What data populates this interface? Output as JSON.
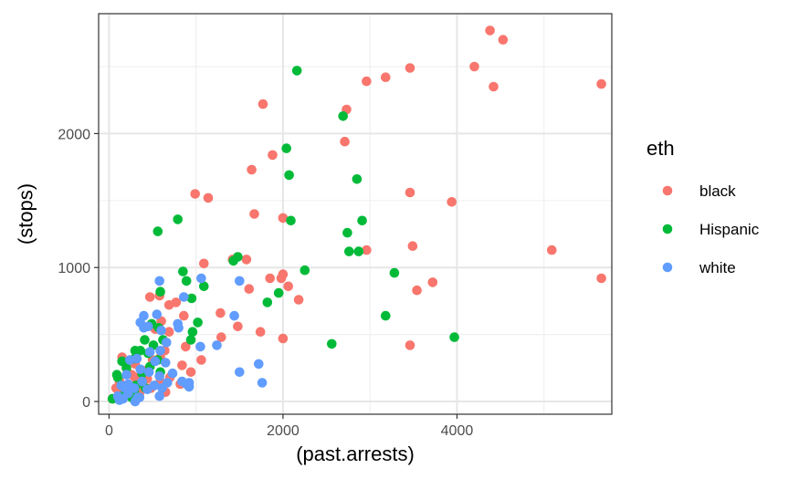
{
  "chart_data": {
    "type": "scatter",
    "title": "",
    "xlabel": "(past.arrests)",
    "ylabel": "(stops)",
    "xlim": [
      -120,
      5780
    ],
    "ylim": [
      -95,
      2895
    ],
    "x_ticks": [
      0,
      2000,
      4000
    ],
    "y_ticks": [
      0,
      1000,
      2000
    ],
    "x_tick_labels": [
      "0",
      "2000",
      "4000"
    ],
    "y_tick_labels": [
      "0",
      "1000",
      "2000"
    ],
    "grid": true,
    "legend": {
      "title": "eth",
      "placement": "right"
    },
    "series": [
      {
        "name": "black",
        "color": "#F8766D",
        "points": [
          [
            4380,
            2770
          ],
          [
            4530,
            2700
          ],
          [
            3460,
            2490
          ],
          [
            4200,
            2500
          ],
          [
            3180,
            2420
          ],
          [
            2960,
            2390
          ],
          [
            4420,
            2350
          ],
          [
            5660,
            2370
          ],
          [
            1770,
            2220
          ],
          [
            2730,
            2180
          ],
          [
            2710,
            1940
          ],
          [
            1880,
            1840
          ],
          [
            1640,
            1730
          ],
          [
            3460,
            1560
          ],
          [
            990,
            1550
          ],
          [
            1140,
            1520
          ],
          [
            3940,
            1490
          ],
          [
            1670,
            1400
          ],
          [
            2000,
            1370
          ],
          [
            3490,
            1160
          ],
          [
            2960,
            1130
          ],
          [
            5090,
            1130
          ],
          [
            1420,
            1060
          ],
          [
            1580,
            1060
          ],
          [
            1090,
            1030
          ],
          [
            2000,
            950
          ],
          [
            1980,
            920
          ],
          [
            1850,
            920
          ],
          [
            3720,
            890
          ],
          [
            5660,
            920
          ],
          [
            2060,
            860
          ],
          [
            1610,
            840
          ],
          [
            3540,
            830
          ],
          [
            2180,
            760
          ],
          [
            580,
            790
          ],
          [
            470,
            780
          ],
          [
            770,
            740
          ],
          [
            690,
            720
          ],
          [
            1280,
            660
          ],
          [
            860,
            640
          ],
          [
            600,
            600
          ],
          [
            1480,
            560
          ],
          [
            1740,
            520
          ],
          [
            2000,
            470
          ],
          [
            530,
            540
          ],
          [
            690,
            520
          ],
          [
            1290,
            480
          ],
          [
            3460,
            420
          ],
          [
            880,
            410
          ],
          [
            640,
            380
          ],
          [
            590,
            330
          ],
          [
            1060,
            310
          ],
          [
            840,
            270
          ],
          [
            150,
            330
          ],
          [
            500,
            310
          ],
          [
            300,
            280
          ],
          [
            200,
            250
          ],
          [
            940,
            220
          ],
          [
            420,
            230
          ],
          [
            300,
            180
          ],
          [
            120,
            150
          ],
          [
            80,
            100
          ],
          [
            210,
            120
          ],
          [
            350,
            130
          ],
          [
            440,
            170
          ],
          [
            590,
            150
          ],
          [
            170,
            70
          ],
          [
            250,
            50
          ],
          [
            40,
            20
          ],
          [
            120,
            20
          ],
          [
            700,
            180
          ],
          [
            820,
            130
          ],
          [
            350,
            60
          ],
          [
            480,
            100
          ],
          [
            650,
            70
          ],
          [
            260,
            200
          ]
        ]
      },
      {
        "name": "Hispanic",
        "color": "#00BA38",
        "points": [
          [
            2160,
            2470
          ],
          [
            2690,
            2130
          ],
          [
            2040,
            1890
          ],
          [
            2070,
            1690
          ],
          [
            2850,
            1660
          ],
          [
            2740,
            1260
          ],
          [
            2910,
            1350
          ],
          [
            2090,
            1350
          ],
          [
            790,
            1360
          ],
          [
            560,
            1270
          ],
          [
            1480,
            1080
          ],
          [
            2760,
            1120
          ],
          [
            2870,
            1120
          ],
          [
            1430,
            1050
          ],
          [
            2250,
            980
          ],
          [
            850,
            970
          ],
          [
            3280,
            960
          ],
          [
            890,
            900
          ],
          [
            1950,
            810
          ],
          [
            1820,
            740
          ],
          [
            3180,
            640
          ],
          [
            3970,
            480
          ],
          [
            2560,
            430
          ],
          [
            1090,
            860
          ],
          [
            950,
            770
          ],
          [
            590,
            820
          ],
          [
            1020,
            590
          ],
          [
            960,
            520
          ],
          [
            570,
            550
          ],
          [
            490,
            580
          ],
          [
            940,
            460
          ],
          [
            410,
            460
          ],
          [
            510,
            420
          ],
          [
            300,
            380
          ],
          [
            360,
            380
          ],
          [
            450,
            360
          ],
          [
            150,
            300
          ],
          [
            290,
            320
          ],
          [
            560,
            310
          ],
          [
            470,
            260
          ],
          [
            200,
            250
          ],
          [
            380,
            210
          ],
          [
            100,
            180
          ],
          [
            90,
            200
          ],
          [
            310,
            120
          ],
          [
            420,
            100
          ],
          [
            150,
            40
          ],
          [
            290,
            80
          ],
          [
            40,
            20
          ],
          [
            260,
            30
          ],
          [
            590,
            220
          ],
          [
            620,
            460
          ]
        ]
      },
      {
        "name": "white",
        "color": "#619CFF",
        "points": [
          [
            580,
            900
          ],
          [
            1500,
            900
          ],
          [
            1060,
            920
          ],
          [
            860,
            780
          ],
          [
            400,
            640
          ],
          [
            550,
            650
          ],
          [
            790,
            580
          ],
          [
            360,
            590
          ],
          [
            450,
            560
          ],
          [
            1440,
            640
          ],
          [
            600,
            530
          ],
          [
            800,
            550
          ],
          [
            1050,
            410
          ],
          [
            1240,
            420
          ],
          [
            400,
            550
          ],
          [
            660,
            440
          ],
          [
            590,
            380
          ],
          [
            470,
            370
          ],
          [
            320,
            320
          ],
          [
            240,
            310
          ],
          [
            530,
            300
          ],
          [
            1720,
            280
          ],
          [
            650,
            290
          ],
          [
            360,
            240
          ],
          [
            460,
            220
          ],
          [
            580,
            190
          ],
          [
            730,
            210
          ],
          [
            890,
            130
          ],
          [
            1500,
            220
          ],
          [
            1760,
            140
          ],
          [
            840,
            150
          ],
          [
            920,
            140
          ],
          [
            670,
            140
          ],
          [
            520,
            120
          ],
          [
            380,
            150
          ],
          [
            220,
            130
          ],
          [
            140,
            120
          ],
          [
            290,
            100
          ],
          [
            440,
            90
          ],
          [
            220,
            60
          ],
          [
            100,
            40
          ],
          [
            160,
            20
          ],
          [
            330,
            30
          ],
          [
            580,
            40
          ],
          [
            920,
            110
          ],
          [
            200,
            200
          ],
          [
            350,
            30
          ],
          [
            120,
            10
          ],
          [
            300,
            0
          ],
          [
            180,
            100
          ],
          [
            610,
            100
          ]
        ]
      }
    ]
  }
}
